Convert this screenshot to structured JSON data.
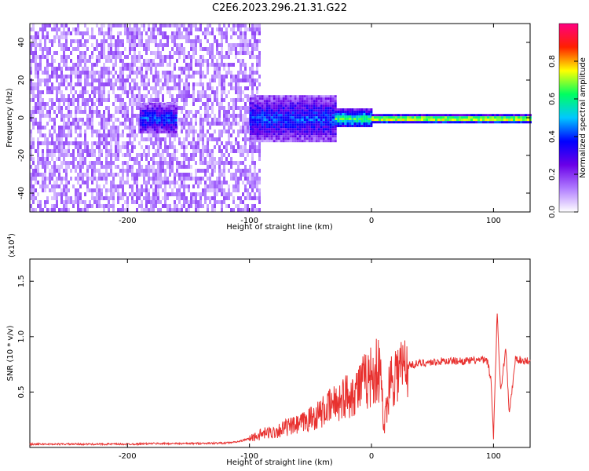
{
  "title": "C2E6.2023.296.21.31.G22",
  "chart_data": [
    {
      "type": "heatmap",
      "xlabel": "Height of straight line (km)",
      "ylabel": "Frequency (Hz)",
      "xlim": [
        -280,
        130
      ],
      "ylim": [
        -50,
        50
      ],
      "x_ticks": [
        -200,
        -100,
        0,
        100
      ],
      "x_tick_labels": [
        "-200",
        "-100",
        "0",
        "100"
      ],
      "y_ticks": [
        -40,
        -20,
        0,
        20,
        40
      ],
      "y_tick_labels": [
        "-40",
        "-20",
        "0",
        "20",
        "40"
      ],
      "colorbar": {
        "label": "Normalized spectral amplitude",
        "range": [
          0,
          1
        ],
        "ticks": [
          0.0,
          0.2,
          0.4,
          0.6,
          0.8
        ],
        "tick_labels": [
          "0.0",
          "0.2",
          "0.4",
          "0.6",
          "0.8"
        ],
        "colors": [
          "#ffffff",
          "#b07cff",
          "#6a00e8",
          "#0000ff",
          "#00c8ff",
          "#00ff60",
          "#ffff00",
          "#ff2000",
          "#ff0080"
        ]
      },
      "regions": [
        {
          "x_from": -280,
          "x_to": -92,
          "f_from": -50,
          "f_to": 50,
          "level": 0.12
        },
        {
          "x_from": -190,
          "x_to": -160,
          "f_from": -8,
          "f_to": 8,
          "level": 0.3
        },
        {
          "x_from": -100,
          "x_to": -30,
          "f_from": -12,
          "f_to": 12,
          "level": 0.3
        },
        {
          "x_from": -30,
          "x_to": 0,
          "f_from": -5,
          "f_to": 5,
          "level": 0.45
        },
        {
          "x_from": 0,
          "x_to": 130,
          "f_from": -2,
          "f_to": 2,
          "level": 0.6
        }
      ],
      "grid": false
    },
    {
      "type": "line",
      "xlabel": "Height of straight line (km)",
      "ylabel": "SNR (10 * v/v)",
      "y_multiplier": "(x10",
      "y_multiplier_exp": "4",
      "y_multiplier_close": ")",
      "xlim": [
        -280,
        130
      ],
      "ylim": [
        0,
        1.7
      ],
      "x_ticks": [
        -200,
        -100,
        0,
        100
      ],
      "x_tick_labels": [
        "-200",
        "-100",
        "0",
        "100"
      ],
      "y_ticks": [
        0.5,
        1.0,
        1.5
      ],
      "y_tick_labels": [
        "0.5",
        "1.0",
        "1.5"
      ],
      "color": "#e8312f",
      "x": [
        -280,
        -250,
        -220,
        -200,
        -180,
        -150,
        -120,
        -110,
        -100,
        -90,
        -80,
        -70,
        -60,
        -50,
        -40,
        -30,
        -20,
        -15,
        -10,
        -5,
        0,
        5,
        8,
        10,
        15,
        20,
        25,
        30,
        40,
        50,
        60,
        70,
        80,
        90,
        95,
        98,
        100,
        103,
        106,
        110,
        113,
        118,
        125,
        130
      ],
      "y": [
        0.03,
        0.03,
        0.03,
        0.03,
        0.035,
        0.035,
        0.04,
        0.05,
        0.08,
        0.12,
        0.14,
        0.18,
        0.2,
        0.26,
        0.32,
        0.4,
        0.47,
        0.5,
        0.55,
        0.6,
        0.65,
        0.7,
        0.62,
        0.15,
        0.62,
        0.68,
        0.72,
        0.74,
        0.76,
        0.77,
        0.78,
        0.78,
        0.78,
        0.79,
        0.78,
        0.6,
        0.1,
        1.2,
        0.5,
        0.9,
        0.3,
        0.8,
        0.78,
        0.79
      ],
      "grid": false
    }
  ]
}
